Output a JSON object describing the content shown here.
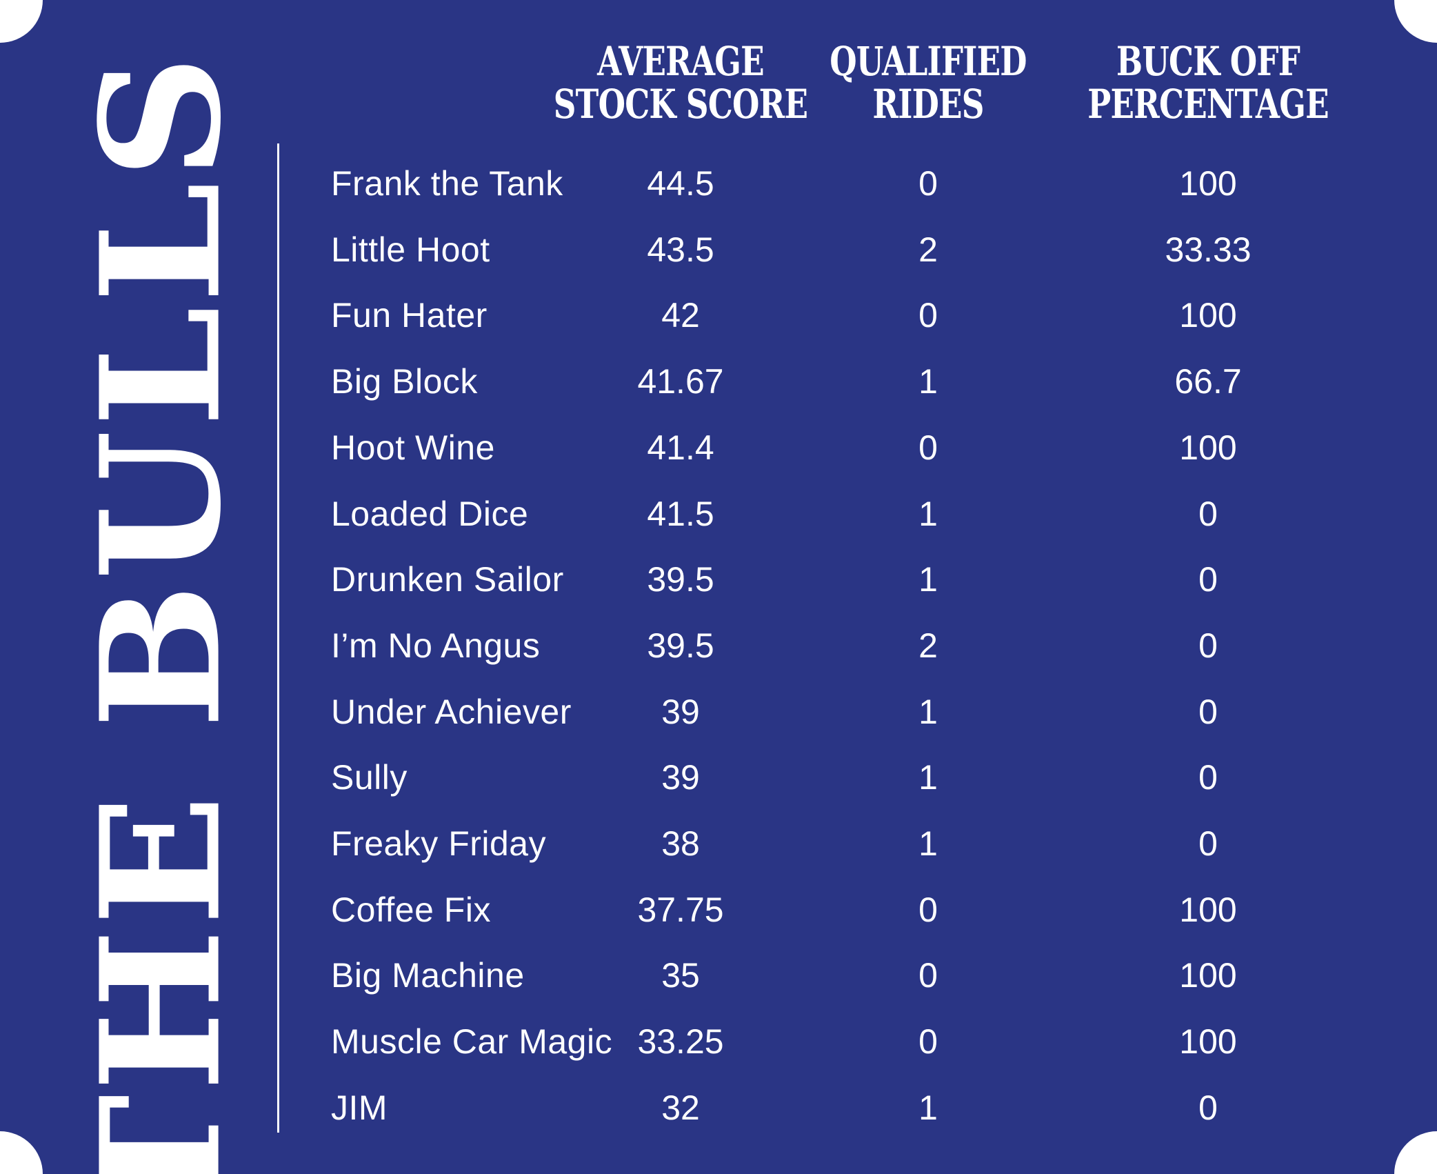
{
  "title": "THE BULLS",
  "colors": {
    "background": "#2a3585",
    "text": "#ffffff"
  },
  "columns": [
    {
      "line1": "AVERAGE",
      "line2": "STOCK SCORE"
    },
    {
      "line1": "QUALIFIED",
      "line2": "RIDES"
    },
    {
      "line1": "BUCK OFF",
      "line2": "PERCENTAGE"
    }
  ],
  "rows": [
    {
      "name": "Frank the Tank",
      "score": "44.5",
      "rides": "0",
      "buckoff": "100"
    },
    {
      "name": "Little Hoot",
      "score": "43.5",
      "rides": "2",
      "buckoff": "33.33"
    },
    {
      "name": "Fun Hater",
      "score": "42",
      "rides": "0",
      "buckoff": "100"
    },
    {
      "name": "Big Block",
      "score": "41.67",
      "rides": "1",
      "buckoff": "66.7"
    },
    {
      "name": "Hoot Wine",
      "score": "41.4",
      "rides": "0",
      "buckoff": "100"
    },
    {
      "name": "Loaded Dice",
      "score": "41.5",
      "rides": "1",
      "buckoff": "0"
    },
    {
      "name": "Drunken Sailor",
      "score": "39.5",
      "rides": "1",
      "buckoff": "0"
    },
    {
      "name": "I’m No Angus",
      "score": "39.5",
      "rides": "2",
      "buckoff": "0"
    },
    {
      "name": "Under Achiever",
      "score": "39",
      "rides": "1",
      "buckoff": "0"
    },
    {
      "name": "Sully",
      "score": "39",
      "rides": "1",
      "buckoff": "0"
    },
    {
      "name": "Freaky Friday",
      "score": "38",
      "rides": "1",
      "buckoff": "0"
    },
    {
      "name": "Coffee Fix",
      "score": "37.75",
      "rides": "0",
      "buckoff": "100"
    },
    {
      "name": "Big Machine",
      "score": "35",
      "rides": "0",
      "buckoff": "100"
    },
    {
      "name": "Muscle Car Magic",
      "score": "33.25",
      "rides": "0",
      "buckoff": "100"
    },
    {
      "name": "JIM",
      "score": "32",
      "rides": "1",
      "buckoff": "0"
    }
  ]
}
